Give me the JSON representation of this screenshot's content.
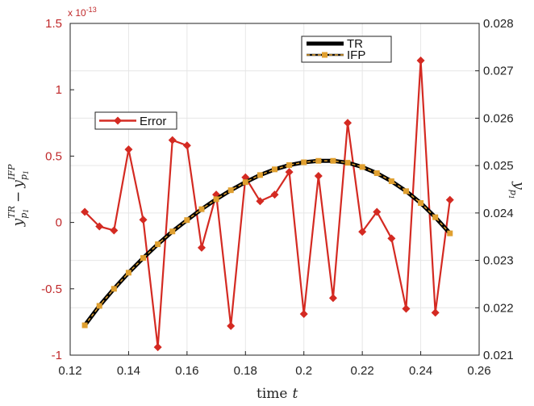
{
  "chart_data": {
    "type": "line",
    "xlabel": "time",
    "xlabel_var": "t",
    "xlim": [
      0.12,
      0.26
    ],
    "xticks": [
      "0.12",
      "0.14",
      "0.16",
      "0.18",
      "0.2",
      "0.22",
      "0.24",
      "0.26"
    ],
    "left_axis": {
      "label_math": "y^TR_p1 − y^IFP_p1",
      "exponent": "x 10",
      "exponent_power": "-13",
      "ylim": [
        -1,
        1.5
      ],
      "ticks": [
        "1.5",
        "1",
        "0.5",
        "0",
        "-0.5",
        "-1"
      ],
      "color": "#c0282a"
    },
    "right_axis": {
      "label_math": "y_p1",
      "ylim": [
        0.021,
        0.028
      ],
      "ticks": [
        "0.028",
        "0.027",
        "0.026",
        "0.025",
        "0.024",
        "0.023",
        "0.022",
        "0.021"
      ]
    },
    "x": [
      0.125,
      0.13,
      0.135,
      0.14,
      0.145,
      0.15,
      0.155,
      0.16,
      0.165,
      0.17,
      0.175,
      0.18,
      0.185,
      0.19,
      0.195,
      0.2,
      0.205,
      0.21,
      0.215,
      0.22,
      0.225,
      0.23,
      0.235,
      0.24,
      0.245,
      0.25
    ],
    "series": [
      {
        "name": "Error",
        "axis": "left",
        "color": "#d42a22",
        "marker": "diamond",
        "values": [
          0.08,
          -0.03,
          -0.06,
          0.55,
          0.02,
          -0.94,
          0.62,
          0.58,
          -0.19,
          0.21,
          -0.78,
          0.34,
          0.16,
          0.21,
          0.38,
          -0.69,
          0.35,
          -0.57,
          0.75,
          -0.07,
          0.08,
          -0.12,
          -0.65,
          1.22,
          -0.68,
          0.17
        ]
      },
      {
        "name": "TR",
        "axis": "right",
        "color": "#000000",
        "marker": "none",
        "values": [
          0.02163,
          0.02204,
          0.0224,
          0.02274,
          0.02305,
          0.02334,
          0.02361,
          0.02385,
          0.02408,
          0.02429,
          0.02448,
          0.02465,
          0.0248,
          0.02492,
          0.02501,
          0.02507,
          0.0251,
          0.0251,
          0.02506,
          0.02497,
          0.02484,
          0.02467,
          0.02446,
          0.02421,
          0.02391,
          0.02357
        ]
      },
      {
        "name": "IFP",
        "axis": "right",
        "color": "#e0a030",
        "marker": "square",
        "values": [
          0.02163,
          0.02204,
          0.0224,
          0.02274,
          0.02305,
          0.02334,
          0.02361,
          0.02385,
          0.02408,
          0.02429,
          0.02448,
          0.02465,
          0.0248,
          0.02492,
          0.02501,
          0.02507,
          0.0251,
          0.0251,
          0.02506,
          0.02497,
          0.02484,
          0.02467,
          0.02446,
          0.02421,
          0.02391,
          0.02357
        ]
      }
    ]
  }
}
